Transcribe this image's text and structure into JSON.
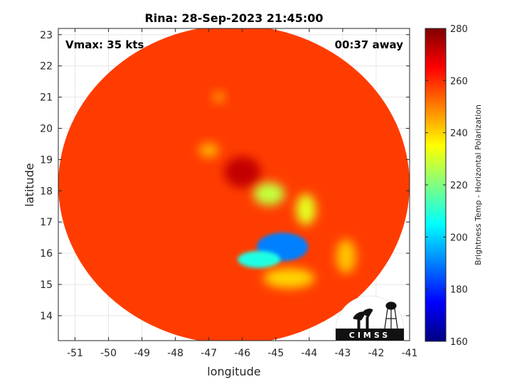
{
  "chart_data": {
    "type": "heatmap",
    "title": "Rina: 28-Sep-2023 21:45:00",
    "xlabel": "longitude",
    "ylabel": "latitude",
    "xlim": [
      -51.5,
      -41
    ],
    "ylim": [
      13.2,
      23.2
    ],
    "xticks": [
      "-51",
      "-50",
      "-49",
      "-48",
      "-47",
      "-46",
      "-45",
      "-44",
      "-43",
      "-42",
      "-41"
    ],
    "yticks": [
      "14",
      "15",
      "16",
      "17",
      "18",
      "19",
      "20",
      "21",
      "22",
      "23"
    ],
    "grid": true,
    "colorbar": {
      "label": "Brightness Temp - Horizontal Polarization",
      "range": [
        160,
        280
      ],
      "ticks": [
        "160",
        "180",
        "200",
        "220",
        "240",
        "260",
        "280"
      ],
      "colormap": "jet"
    },
    "annotations": {
      "left": "Vmax: 35 kts",
      "right": "00:37 away"
    },
    "swath": {
      "shape": "disk",
      "center_lon": -46.25,
      "center_lat": 18.2,
      "background_value": 258
    },
    "features": [
      {
        "lon": -46.0,
        "lat": 18.6,
        "value": 272
      },
      {
        "lon": -45.2,
        "lat": 17.9,
        "value": 228
      },
      {
        "lon": -44.1,
        "lat": 17.4,
        "value": 232
      },
      {
        "lon": -44.8,
        "lat": 16.2,
        "value": 190
      },
      {
        "lon": -45.5,
        "lat": 15.8,
        "value": 208
      },
      {
        "lon": -44.6,
        "lat": 15.2,
        "value": 240
      },
      {
        "lon": -42.9,
        "lat": 15.9,
        "value": 242
      },
      {
        "lon": -47.0,
        "lat": 19.3,
        "value": 244
      },
      {
        "lon": -46.7,
        "lat": 21.0,
        "value": 246
      }
    ]
  },
  "logo": {
    "text": "CIMSS"
  },
  "colors": {
    "background": "#ffffff",
    "axis": "#262626",
    "grid": "#e6e6e6"
  }
}
